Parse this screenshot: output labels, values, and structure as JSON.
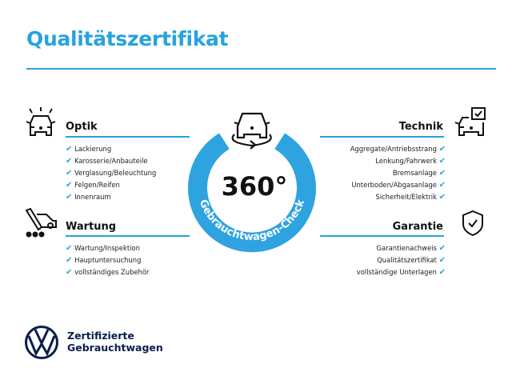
{
  "title": "Qualitätszertifikat",
  "badge": {
    "value": "360°",
    "arc_text": "Gebrauchtwagen-Check",
    "color": "#2ea3e0"
  },
  "sections": {
    "optik": {
      "title": "Optik",
      "icon": "car-lights-icon",
      "items": [
        "Lackierung",
        "Karosserie/Anbauteile",
        "Verglasung/Beleuchtung",
        "Felgen/Reifen",
        "Innenraum"
      ]
    },
    "wartung": {
      "title": "Wartung",
      "icon": "service-tools-icon",
      "items": [
        "Wartung/Inspektion",
        "Hauptuntersuchung",
        "vollständiges Zubehör"
      ]
    },
    "technik": {
      "title": "Technik",
      "icon": "car-checklist-icon",
      "items": [
        "Aggregate/Antriebsstrang",
        "Lenkung/Fahrwerk",
        "Bremsanlage",
        "Unterboden/Abgasanlage",
        "Sicherheit/Elektrik"
      ]
    },
    "garantie": {
      "title": "Garantie",
      "icon": "shield-check-icon",
      "items": [
        "Garantienachweis",
        "Qualitätszertifikat",
        "vollständige Unterlagen"
      ]
    }
  },
  "check": "✔",
  "logo": {
    "line1": "Zertifizierte",
    "line2": "Gebrauchtwagen",
    "color": "#0b1e4c"
  },
  "accent": "#27a3dd"
}
